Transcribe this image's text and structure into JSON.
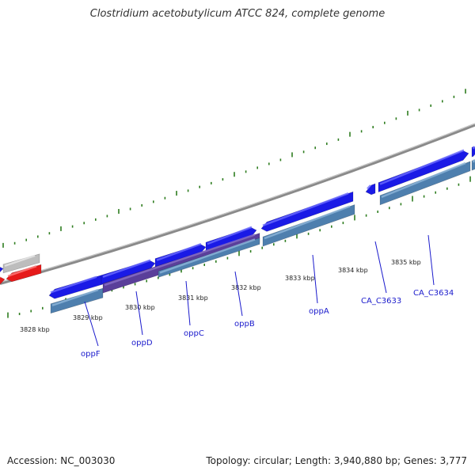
{
  "title": "Clostridium acetobutylicum ATCC 824, complete genome",
  "footer": {
    "accession": "Accession: NC_003030",
    "stats": "Topology: circular; Length: 3,940,880 bp; Genes: 3,777"
  },
  "colors": {
    "background": "#ffffff",
    "backbone": "#8a8a8a",
    "cds": "#1a1ae6",
    "cds_top": "#6b6bff",
    "gene": "#4e7fae",
    "gene_top": "#8fb6d9",
    "overlap": "#5a3f9a",
    "rna": "#e61a1a",
    "pseudo": "#bdbdbd",
    "tick": "#2e7d1f",
    "label": "#1a1acc"
  },
  "ticks": [
    "3828 kbp",
    "3829 kbp",
    "3830 kbp",
    "3831 kbp",
    "3832 kbp",
    "3833 kbp",
    "3834 kbp",
    "3835 kbp"
  ],
  "genes": [
    "oppF",
    "oppD",
    "oppC",
    "oppB",
    "oppA",
    "CA_C3633",
    "CA_C3634"
  ]
}
